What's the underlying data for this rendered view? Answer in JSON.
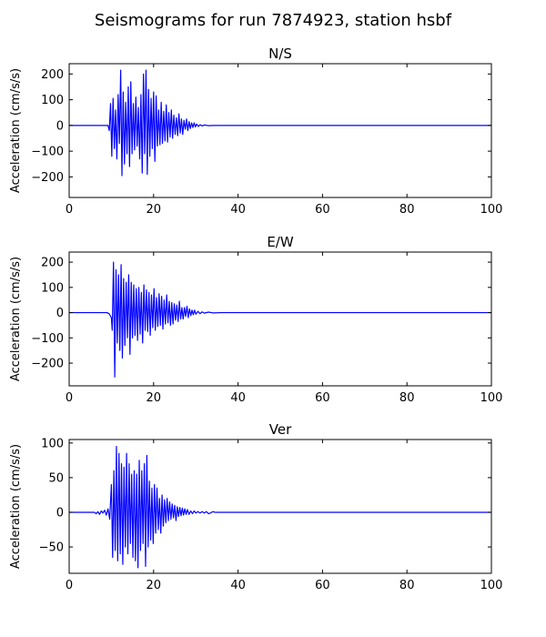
{
  "figure_title": "Seismograms for run 7874923, station hsbf",
  "chart_data": [
    {
      "type": "line",
      "title": "N/S",
      "xlabel": "",
      "ylabel": "Acceleration (cm/s/s)",
      "xlim": [
        0,
        100
      ],
      "ylim": [
        -280,
        240
      ],
      "xticks": [
        0,
        20,
        40,
        60,
        80,
        100
      ],
      "yticks": [
        -200,
        -100,
        0,
        100,
        200
      ],
      "grid": false,
      "color": "#0000ff",
      "series": [
        {
          "x": [
            0,
            9.2,
            9.5,
            9.8,
            10.1,
            10.4,
            10.7,
            11.0,
            11.3,
            11.6,
            11.9,
            12.2,
            12.5,
            12.8,
            13.1,
            13.4,
            13.7,
            14.0,
            14.3,
            14.6,
            14.9,
            15.2,
            15.5,
            15.8,
            16.1,
            16.4,
            16.7,
            17.0,
            17.3,
            17.6,
            17.9,
            18.2,
            18.5,
            18.8,
            19.1,
            19.4,
            19.7,
            20.0,
            20.3,
            20.6,
            20.9,
            21.2,
            21.5,
            21.8,
            22.1,
            22.4,
            22.7,
            23.0,
            23.3,
            23.6,
            23.9,
            24.2,
            24.5,
            24.8,
            25.1,
            25.4,
            25.7,
            26.0,
            26.3,
            26.6,
            26.9,
            27.2,
            27.5,
            27.8,
            28.1,
            28.4,
            28.7,
            29.0,
            29.3,
            29.6,
            29.9,
            30.2,
            30.6,
            31.0,
            31.5,
            32.0,
            33.0,
            34.0,
            36.0,
            100
          ],
          "y": [
            0,
            0,
            -20,
            85,
            -120,
            105,
            -90,
            60,
            -130,
            120,
            -70,
            215,
            -195,
            130,
            -150,
            90,
            -110,
            150,
            -160,
            170,
            -110,
            85,
            -95,
            110,
            -80,
            70,
            -130,
            120,
            -185,
            200,
            -110,
            215,
            -190,
            140,
            -120,
            105,
            -90,
            130,
            -140,
            115,
            -80,
            60,
            -75,
            90,
            -70,
            55,
            -60,
            80,
            -65,
            50,
            -45,
            60,
            -50,
            40,
            -35,
            30,
            -40,
            45,
            -30,
            25,
            -35,
            20,
            -15,
            25,
            -20,
            15,
            -12,
            10,
            -8,
            10,
            -6,
            5,
            -4,
            3,
            -2,
            2,
            -1,
            0,
            0,
            0
          ]
        }
      ]
    },
    {
      "type": "line",
      "title": "E/W",
      "xlabel": "",
      "ylabel": "Acceleration (cm/s/s)",
      "xlim": [
        0,
        100
      ],
      "ylim": [
        -290,
        240
      ],
      "xticks": [
        0,
        20,
        40,
        60,
        80,
        100
      ],
      "yticks": [
        -200,
        -100,
        0,
        100,
        200
      ],
      "grid": false,
      "color": "#0000ff",
      "series": [
        {
          "x": [
            0,
            9.0,
            9.5,
            10.0,
            10.2,
            10.5,
            10.8,
            11.1,
            11.4,
            11.7,
            12.0,
            12.3,
            12.6,
            12.9,
            13.2,
            13.5,
            13.8,
            14.1,
            14.4,
            14.7,
            15.0,
            15.3,
            15.6,
            15.9,
            16.2,
            16.5,
            16.8,
            17.1,
            17.4,
            17.7,
            18.0,
            18.3,
            18.6,
            18.9,
            19.2,
            19.5,
            19.8,
            20.1,
            20.4,
            20.7,
            21.0,
            21.3,
            21.6,
            21.9,
            22.2,
            22.5,
            22.8,
            23.1,
            23.4,
            23.7,
            24.0,
            24.3,
            24.6,
            24.9,
            25.2,
            25.5,
            25.8,
            26.1,
            26.4,
            26.7,
            27.0,
            27.3,
            27.6,
            27.9,
            28.2,
            28.5,
            28.8,
            29.1,
            29.4,
            29.7,
            30.0,
            30.5,
            31.0,
            31.5,
            32.0,
            33.0,
            34.0,
            36.0,
            100
          ],
          "y": [
            0,
            0,
            -5,
            -20,
            -70,
            200,
            -255,
            170,
            -120,
            150,
            -150,
            190,
            -180,
            135,
            -130,
            120,
            -100,
            150,
            -165,
            120,
            -100,
            110,
            -90,
            95,
            -110,
            100,
            -85,
            80,
            -120,
            110,
            -70,
            90,
            -75,
            80,
            -90,
            70,
            -60,
            95,
            -70,
            60,
            -55,
            75,
            -50,
            65,
            -65,
            50,
            -45,
            70,
            -40,
            45,
            -50,
            40,
            -45,
            35,
            -30,
            30,
            -35,
            45,
            -25,
            20,
            -25,
            20,
            -15,
            25,
            -20,
            15,
            -12,
            10,
            -8,
            10,
            -6,
            5,
            -4,
            3,
            -2,
            2,
            -1,
            0,
            0
          ]
        }
      ]
    },
    {
      "type": "line",
      "title": "Ver",
      "xlabel": "",
      "ylabel": "Acceleration (cm/s/s)",
      "xlim": [
        0,
        100
      ],
      "ylim": [
        -88,
        105
      ],
      "xticks": [
        0,
        20,
        40,
        60,
        80,
        100
      ],
      "yticks": [
        -50,
        0,
        50,
        100
      ],
      "grid": false,
      "color": "#0000ff",
      "series": [
        {
          "x": [
            0,
            6.0,
            6.4,
            6.8,
            7.2,
            7.6,
            8.0,
            8.4,
            8.8,
            9.2,
            9.6,
            10.0,
            10.3,
            10.6,
            10.9,
            11.2,
            11.5,
            11.8,
            12.1,
            12.4,
            12.7,
            13.0,
            13.3,
            13.6,
            13.9,
            14.2,
            14.5,
            14.8,
            15.1,
            15.4,
            15.7,
            16.0,
            16.3,
            16.6,
            16.9,
            17.2,
            17.5,
            17.8,
            18.1,
            18.4,
            18.7,
            19.0,
            19.3,
            19.6,
            19.9,
            20.2,
            20.5,
            20.8,
            21.1,
            21.4,
            21.7,
            22.0,
            22.3,
            22.6,
            22.9,
            23.2,
            23.5,
            23.8,
            24.1,
            24.4,
            24.7,
            25.0,
            25.3,
            25.6,
            25.9,
            26.2,
            26.5,
            26.8,
            27.1,
            27.4,
            27.7,
            28.0,
            28.4,
            28.8,
            29.2,
            29.6,
            30.0,
            30.5,
            31.0,
            31.5,
            32.0,
            32.5,
            33.0,
            33.5,
            34.0,
            34.5,
            35.0,
            36.0,
            100
          ],
          "y": [
            0,
            0,
            -2,
            1,
            -3,
            2,
            -1,
            3,
            -4,
            5,
            -10,
            40,
            -65,
            60,
            -55,
            95,
            -70,
            85,
            -60,
            70,
            -75,
            65,
            -50,
            85,
            -60,
            70,
            -45,
            55,
            -65,
            60,
            -70,
            55,
            -80,
            75,
            -55,
            60,
            -45,
            70,
            -78,
            82,
            -50,
            45,
            -40,
            35,
            -45,
            40,
            -30,
            35,
            -25,
            20,
            -30,
            25,
            -20,
            18,
            -15,
            20,
            -12,
            15,
            -10,
            12,
            -8,
            10,
            -12,
            8,
            -6,
            7,
            -5,
            6,
            -4,
            5,
            -3,
            4,
            -3,
            2,
            -2,
            2,
            -1,
            1,
            -1,
            1,
            -1,
            1,
            -2,
            -1,
            1,
            0,
            0,
            0,
            0
          ]
        }
      ]
    }
  ]
}
